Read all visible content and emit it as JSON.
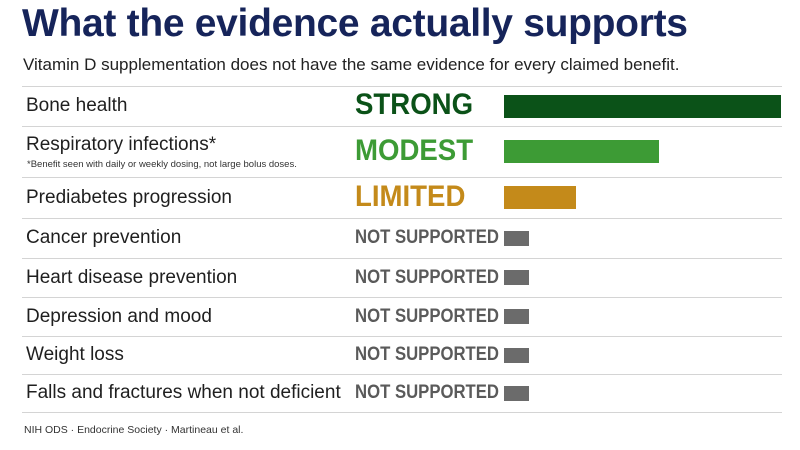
{
  "header": {
    "title": "What the evidence actually supports",
    "subtitle": "Vitamin D supplementation does not have the same evidence for every claimed benefit."
  },
  "chart_data": {
    "type": "bar",
    "orientation": "horizontal",
    "scale_levels": [
      "NOT SUPPORTED",
      "LIMITED",
      "MODEST",
      "STRONG"
    ],
    "categories": [
      "Bone health",
      "Respiratory infections*",
      "Prediabetes progression",
      "Cancer prevention",
      "Heart disease prevention",
      "Depression and mood",
      "Weight loss",
      "Falls and fractures when not deficient"
    ],
    "rows": [
      {
        "label": "Bone health",
        "level": "STRONG",
        "value": 1.0,
        "color": "#0b5218"
      },
      {
        "label": "Respiratory infections*",
        "note": "*Benefit seen with daily or weekly dosing, not large bolus doses.",
        "level": "MODEST",
        "value": 0.56,
        "color": "#3d9b35"
      },
      {
        "label": "Prediabetes progression",
        "level": "LIMITED",
        "value": 0.26,
        "color": "#c48a1a"
      },
      {
        "label": "Cancer prevention",
        "level": "NOT SUPPORTED",
        "value": 0.09,
        "color": "#6b6b6b"
      },
      {
        "label": "Heart disease prevention",
        "level": "NOT SUPPORTED",
        "value": 0.09,
        "color": "#6b6b6b"
      },
      {
        "label": "Depression and mood",
        "level": "NOT SUPPORTED",
        "value": 0.09,
        "color": "#6b6b6b"
      },
      {
        "label": "Weight loss",
        "level": "NOT SUPPORTED",
        "value": 0.09,
        "color": "#6b6b6b"
      },
      {
        "label": "Falls and fractures when not deficient",
        "level": "NOT SUPPORTED",
        "value": 0.09,
        "color": "#6b6b6b"
      }
    ],
    "colors": {
      "STRONG": "#0b5218",
      "MODEST": "#3d9b35",
      "LIMITED": "#c48a1a",
      "NOT SUPPORTED": "#6b6b6b"
    }
  },
  "footer": {
    "source": "NIH ODS · Endocrine Society · Martineau et al."
  }
}
